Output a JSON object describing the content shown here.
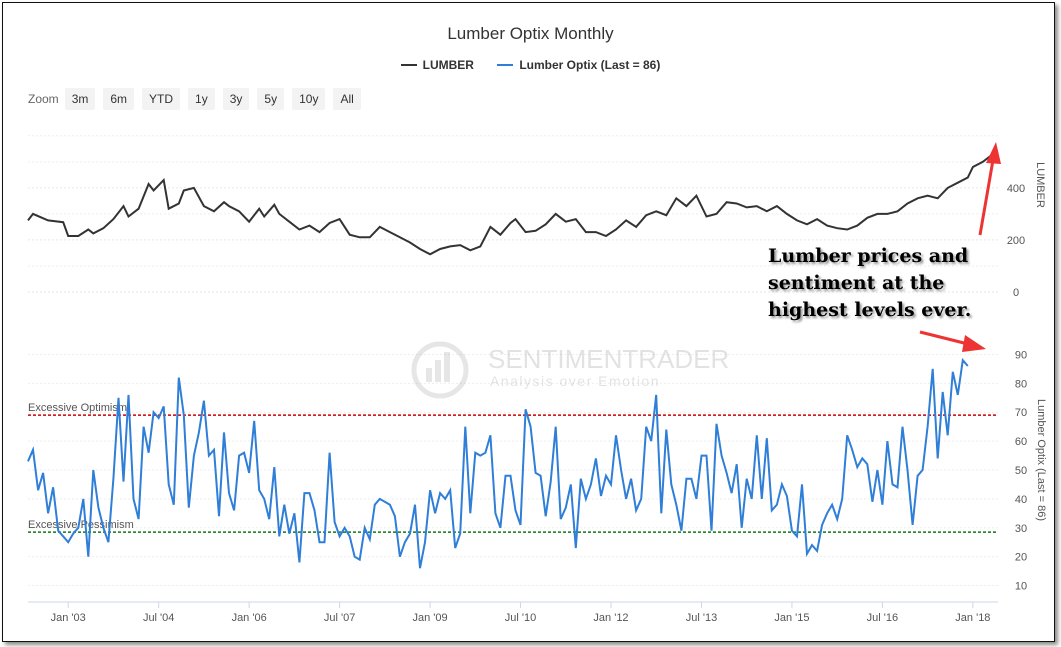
{
  "chart": {
    "title": "Lumber Optix Monthly",
    "legend": [
      {
        "label": "LUMBER",
        "color": "#333333"
      },
      {
        "label": "Lumber Optix (Last = 86)",
        "color": "#2f7ed8"
      }
    ],
    "zoom": {
      "label": "Zoom",
      "buttons": [
        "3m",
        "6m",
        "YTD",
        "1y",
        "3y",
        "5y",
        "10y",
        "All"
      ]
    },
    "annotation": [
      "Lumber prices and",
      "sentiment at the",
      "highest levels ever."
    ],
    "watermark": {
      "name": "SENTIMENTRADER",
      "tagline": "Analysis over Emotion"
    },
    "bands": {
      "optimism_label": "Excessive Optimism",
      "optimism_value": 69,
      "optimism_color": "#cc0000",
      "pessimism_label": "Excessive Pessimism",
      "pessimism_value": 28.5,
      "pessimism_color": "#117711"
    }
  },
  "chart_data": {
    "type": "line",
    "x_tick_labels": [
      "Jan '03",
      "Jul '04",
      "Jan '06",
      "Jul '07",
      "Jan '09",
      "Jul '10",
      "Jan '12",
      "Jul '13",
      "Jan '15",
      "Jul '16",
      "Jan '18"
    ],
    "x_range": [
      "2002-05",
      "2018-06"
    ],
    "lumber": {
      "ylabel": "LUMBER",
      "yticks": [
        0,
        200,
        400
      ],
      "ylim": [
        0,
        630
      ],
      "points": [
        [
          "2002-05",
          275
        ],
        [
          "2002-06",
          300
        ],
        [
          "2002-09",
          275
        ],
        [
          "2002-12",
          268
        ],
        [
          "2003-01",
          215
        ],
        [
          "2003-03",
          215
        ],
        [
          "2003-05",
          240
        ],
        [
          "2003-06",
          225
        ],
        [
          "2003-08",
          245
        ],
        [
          "2003-10",
          280
        ],
        [
          "2003-12",
          330
        ],
        [
          "2004-01",
          290
        ],
        [
          "2004-03",
          320
        ],
        [
          "2004-05",
          415
        ],
        [
          "2004-06",
          390
        ],
        [
          "2004-08",
          430
        ],
        [
          "2004-09",
          320
        ],
        [
          "2004-11",
          340
        ],
        [
          "2004-12",
          390
        ],
        [
          "2005-02",
          400
        ],
        [
          "2005-04",
          330
        ],
        [
          "2005-06",
          310
        ],
        [
          "2005-08",
          345
        ],
        [
          "2005-09",
          330
        ],
        [
          "2005-11",
          310
        ],
        [
          "2006-01",
          270
        ],
        [
          "2006-03",
          320
        ],
        [
          "2006-04",
          290
        ],
        [
          "2006-06",
          335
        ],
        [
          "2006-07",
          300
        ],
        [
          "2006-09",
          270
        ],
        [
          "2006-11",
          240
        ],
        [
          "2007-01",
          255
        ],
        [
          "2007-03",
          230
        ],
        [
          "2007-05",
          265
        ],
        [
          "2007-07",
          280
        ],
        [
          "2007-09",
          220
        ],
        [
          "2007-11",
          210
        ],
        [
          "2008-01",
          210
        ],
        [
          "2008-03",
          250
        ],
        [
          "2008-05",
          230
        ],
        [
          "2008-07",
          210
        ],
        [
          "2008-09",
          190
        ],
        [
          "2008-11",
          165
        ],
        [
          "2009-01",
          145
        ],
        [
          "2009-03",
          165
        ],
        [
          "2009-05",
          175
        ],
        [
          "2009-07",
          180
        ],
        [
          "2009-09",
          160
        ],
        [
          "2009-11",
          175
        ],
        [
          "2010-01",
          250
        ],
        [
          "2010-03",
          220
        ],
        [
          "2010-05",
          265
        ],
        [
          "2010-06",
          280
        ],
        [
          "2010-08",
          230
        ],
        [
          "2010-10",
          235
        ],
        [
          "2010-12",
          260
        ],
        [
          "2011-02",
          300
        ],
        [
          "2011-04",
          270
        ],
        [
          "2011-06",
          280
        ],
        [
          "2011-08",
          230
        ],
        [
          "2011-10",
          230
        ],
        [
          "2011-12",
          215
        ],
        [
          "2012-02",
          240
        ],
        [
          "2012-04",
          275
        ],
        [
          "2012-06",
          250
        ],
        [
          "2012-08",
          295
        ],
        [
          "2012-10",
          310
        ],
        [
          "2012-12",
          295
        ],
        [
          "2013-02",
          360
        ],
        [
          "2013-04",
          330
        ],
        [
          "2013-06",
          370
        ],
        [
          "2013-08",
          290
        ],
        [
          "2013-10",
          300
        ],
        [
          "2013-12",
          345
        ],
        [
          "2014-02",
          340
        ],
        [
          "2014-04",
          325
        ],
        [
          "2014-06",
          330
        ],
        [
          "2014-08",
          310
        ],
        [
          "2014-10",
          330
        ],
        [
          "2014-12",
          300
        ],
        [
          "2015-02",
          275
        ],
        [
          "2015-04",
          260
        ],
        [
          "2015-06",
          280
        ],
        [
          "2015-08",
          255
        ],
        [
          "2015-10",
          245
        ],
        [
          "2015-12",
          240
        ],
        [
          "2016-02",
          255
        ],
        [
          "2016-04",
          285
        ],
        [
          "2016-06",
          300
        ],
        [
          "2016-08",
          300
        ],
        [
          "2016-10",
          310
        ],
        [
          "2016-12",
          340
        ],
        [
          "2017-02",
          360
        ],
        [
          "2017-04",
          370
        ],
        [
          "2017-06",
          360
        ],
        [
          "2017-08",
          400
        ],
        [
          "2017-10",
          420
        ],
        [
          "2017-12",
          440
        ],
        [
          "2018-01",
          480
        ],
        [
          "2018-03",
          500
        ],
        [
          "2018-05",
          530
        ],
        [
          "2018-06",
          535
        ]
      ]
    },
    "optix": {
      "ylabel": "Lumber Optix (Last = 86)",
      "yticks": [
        10,
        20,
        30,
        40,
        50,
        60,
        70,
        80,
        90
      ],
      "ylim": [
        5,
        95
      ],
      "points": [
        [
          "2002-05",
          53
        ],
        [
          "2002-06",
          57
        ],
        [
          "2002-07",
          43
        ],
        [
          "2002-08",
          49
        ],
        [
          "2002-09",
          35
        ],
        [
          "2002-10",
          44
        ],
        [
          "2002-11",
          29
        ],
        [
          "2002-12",
          27
        ],
        [
          "2003-01",
          25
        ],
        [
          "2003-02",
          28
        ],
        [
          "2003-03",
          30
        ],
        [
          "2003-04",
          40
        ],
        [
          "2003-05",
          20
        ],
        [
          "2003-06",
          50
        ],
        [
          "2003-07",
          37
        ],
        [
          "2003-08",
          30
        ],
        [
          "2003-09",
          25
        ],
        [
          "2003-10",
          47
        ],
        [
          "2003-11",
          75
        ],
        [
          "2003-12",
          46
        ],
        [
          "2004-01",
          76
        ],
        [
          "2004-02",
          40
        ],
        [
          "2004-03",
          33
        ],
        [
          "2004-04",
          65
        ],
        [
          "2004-05",
          56
        ],
        [
          "2004-06",
          70
        ],
        [
          "2004-07",
          68
        ],
        [
          "2004-08",
          72
        ],
        [
          "2004-09",
          45
        ],
        [
          "2004-10",
          38
        ],
        [
          "2004-11",
          82
        ],
        [
          "2004-12",
          69
        ],
        [
          "2005-01",
          37
        ],
        [
          "2005-02",
          55
        ],
        [
          "2005-03",
          63
        ],
        [
          "2005-04",
          74
        ],
        [
          "2005-05",
          55
        ],
        [
          "2005-06",
          57
        ],
        [
          "2005-07",
          34
        ],
        [
          "2005-08",
          63
        ],
        [
          "2005-09",
          42
        ],
        [
          "2005-10",
          36
        ],
        [
          "2005-11",
          55
        ],
        [
          "2005-12",
          56
        ],
        [
          "2006-01",
          49
        ],
        [
          "2006-02",
          67
        ],
        [
          "2006-03",
          43
        ],
        [
          "2006-04",
          40
        ],
        [
          "2006-05",
          33
        ],
        [
          "2006-06",
          51
        ],
        [
          "2006-07",
          27
        ],
        [
          "2006-08",
          38
        ],
        [
          "2006-09",
          28
        ],
        [
          "2006-10",
          35
        ],
        [
          "2006-11",
          18
        ],
        [
          "2006-12",
          42
        ],
        [
          "2007-01",
          42
        ],
        [
          "2007-02",
          36
        ],
        [
          "2007-03",
          25
        ],
        [
          "2007-04",
          25
        ],
        [
          "2007-05",
          56
        ],
        [
          "2007-06",
          32
        ],
        [
          "2007-07",
          27
        ],
        [
          "2007-08",
          30
        ],
        [
          "2007-09",
          27
        ],
        [
          "2007-10",
          20
        ],
        [
          "2007-11",
          19
        ],
        [
          "2007-12",
          30
        ],
        [
          "2008-01",
          26
        ],
        [
          "2008-02",
          38
        ],
        [
          "2008-03",
          40
        ],
        [
          "2008-04",
          39
        ],
        [
          "2008-05",
          38
        ],
        [
          "2008-06",
          34
        ],
        [
          "2008-07",
          20
        ],
        [
          "2008-08",
          25
        ],
        [
          "2008-09",
          28
        ],
        [
          "2008-10",
          38
        ],
        [
          "2008-11",
          16
        ],
        [
          "2008-12",
          25
        ],
        [
          "2009-01",
          43
        ],
        [
          "2009-02",
          35
        ],
        [
          "2009-03",
          42
        ],
        [
          "2009-04",
          40
        ],
        [
          "2009-05",
          43
        ],
        [
          "2009-06",
          23
        ],
        [
          "2009-07",
          28
        ],
        [
          "2009-08",
          65
        ],
        [
          "2009-09",
          35
        ],
        [
          "2009-10",
          56
        ],
        [
          "2009-11",
          55
        ],
        [
          "2009-12",
          56
        ],
        [
          "2010-01",
          62
        ],
        [
          "2010-02",
          35
        ],
        [
          "2010-03",
          30
        ],
        [
          "2010-04",
          48
        ],
        [
          "2010-05",
          48
        ],
        [
          "2010-06",
          36
        ],
        [
          "2010-07",
          31
        ],
        [
          "2010-08",
          71
        ],
        [
          "2010-09",
          65
        ],
        [
          "2010-10",
          49
        ],
        [
          "2010-11",
          48
        ],
        [
          "2010-12",
          34
        ],
        [
          "2011-01",
          46
        ],
        [
          "2011-02",
          65
        ],
        [
          "2011-03",
          33
        ],
        [
          "2011-04",
          37
        ],
        [
          "2011-05",
          45
        ],
        [
          "2011-06",
          23
        ],
        [
          "2011-07",
          47
        ],
        [
          "2011-08",
          40
        ],
        [
          "2011-09",
          45
        ],
        [
          "2011-10",
          54
        ],
        [
          "2011-11",
          41
        ],
        [
          "2011-12",
          48
        ],
        [
          "2012-01",
          45
        ],
        [
          "2012-02",
          62
        ],
        [
          "2012-03",
          50
        ],
        [
          "2012-04",
          40
        ],
        [
          "2012-05",
          47
        ],
        [
          "2012-06",
          36
        ],
        [
          "2012-07",
          40
        ],
        [
          "2012-08",
          65
        ],
        [
          "2012-09",
          60
        ],
        [
          "2012-10",
          76
        ],
        [
          "2012-11",
          35
        ],
        [
          "2012-12",
          64
        ],
        [
          "2013-01",
          45
        ],
        [
          "2013-02",
          38
        ],
        [
          "2013-03",
          29
        ],
        [
          "2013-04",
          47
        ],
        [
          "2013-05",
          47
        ],
        [
          "2013-06",
          40
        ],
        [
          "2013-07",
          55
        ],
        [
          "2013-08",
          55
        ],
        [
          "2013-09",
          29
        ],
        [
          "2013-10",
          66
        ],
        [
          "2013-11",
          55
        ],
        [
          "2013-12",
          49
        ],
        [
          "2014-01",
          42
        ],
        [
          "2014-02",
          52
        ],
        [
          "2014-03",
          30
        ],
        [
          "2014-04",
          47
        ],
        [
          "2014-05",
          40
        ],
        [
          "2014-06",
          62
        ],
        [
          "2014-07",
          40
        ],
        [
          "2014-08",
          61
        ],
        [
          "2014-09",
          36
        ],
        [
          "2014-10",
          38
        ],
        [
          "2014-11",
          45
        ],
        [
          "2014-12",
          41
        ],
        [
          "2015-01",
          29
        ],
        [
          "2015-02",
          27
        ],
        [
          "2015-03",
          45
        ],
        [
          "2015-04",
          21
        ],
        [
          "2015-05",
          24
        ],
        [
          "2015-06",
          22
        ],
        [
          "2015-07",
          31
        ],
        [
          "2015-08",
          35
        ],
        [
          "2015-09",
          38
        ],
        [
          "2015-10",
          33
        ],
        [
          "2015-11",
          40
        ],
        [
          "2015-12",
          62
        ],
        [
          "2016-01",
          57
        ],
        [
          "2016-02",
          51
        ],
        [
          "2016-03",
          54
        ],
        [
          "2016-04",
          52
        ],
        [
          "2016-05",
          39
        ],
        [
          "2016-06",
          50
        ],
        [
          "2016-07",
          38
        ],
        [
          "2016-08",
          60
        ],
        [
          "2016-09",
          45
        ],
        [
          "2016-10",
          44
        ],
        [
          "2016-11",
          65
        ],
        [
          "2016-12",
          50
        ],
        [
          "2017-01",
          31
        ],
        [
          "2017-02",
          48
        ],
        [
          "2017-03",
          50
        ],
        [
          "2017-04",
          65
        ],
        [
          "2017-05",
          85
        ],
        [
          "2017-06",
          54
        ],
        [
          "2017-07",
          77
        ],
        [
          "2017-08",
          62
        ],
        [
          "2017-09",
          84
        ],
        [
          "2017-10",
          76
        ],
        [
          "2017-11",
          88
        ],
        [
          "2017-12",
          86
        ]
      ]
    },
    "grid": true,
    "legend_position": "top-center"
  }
}
